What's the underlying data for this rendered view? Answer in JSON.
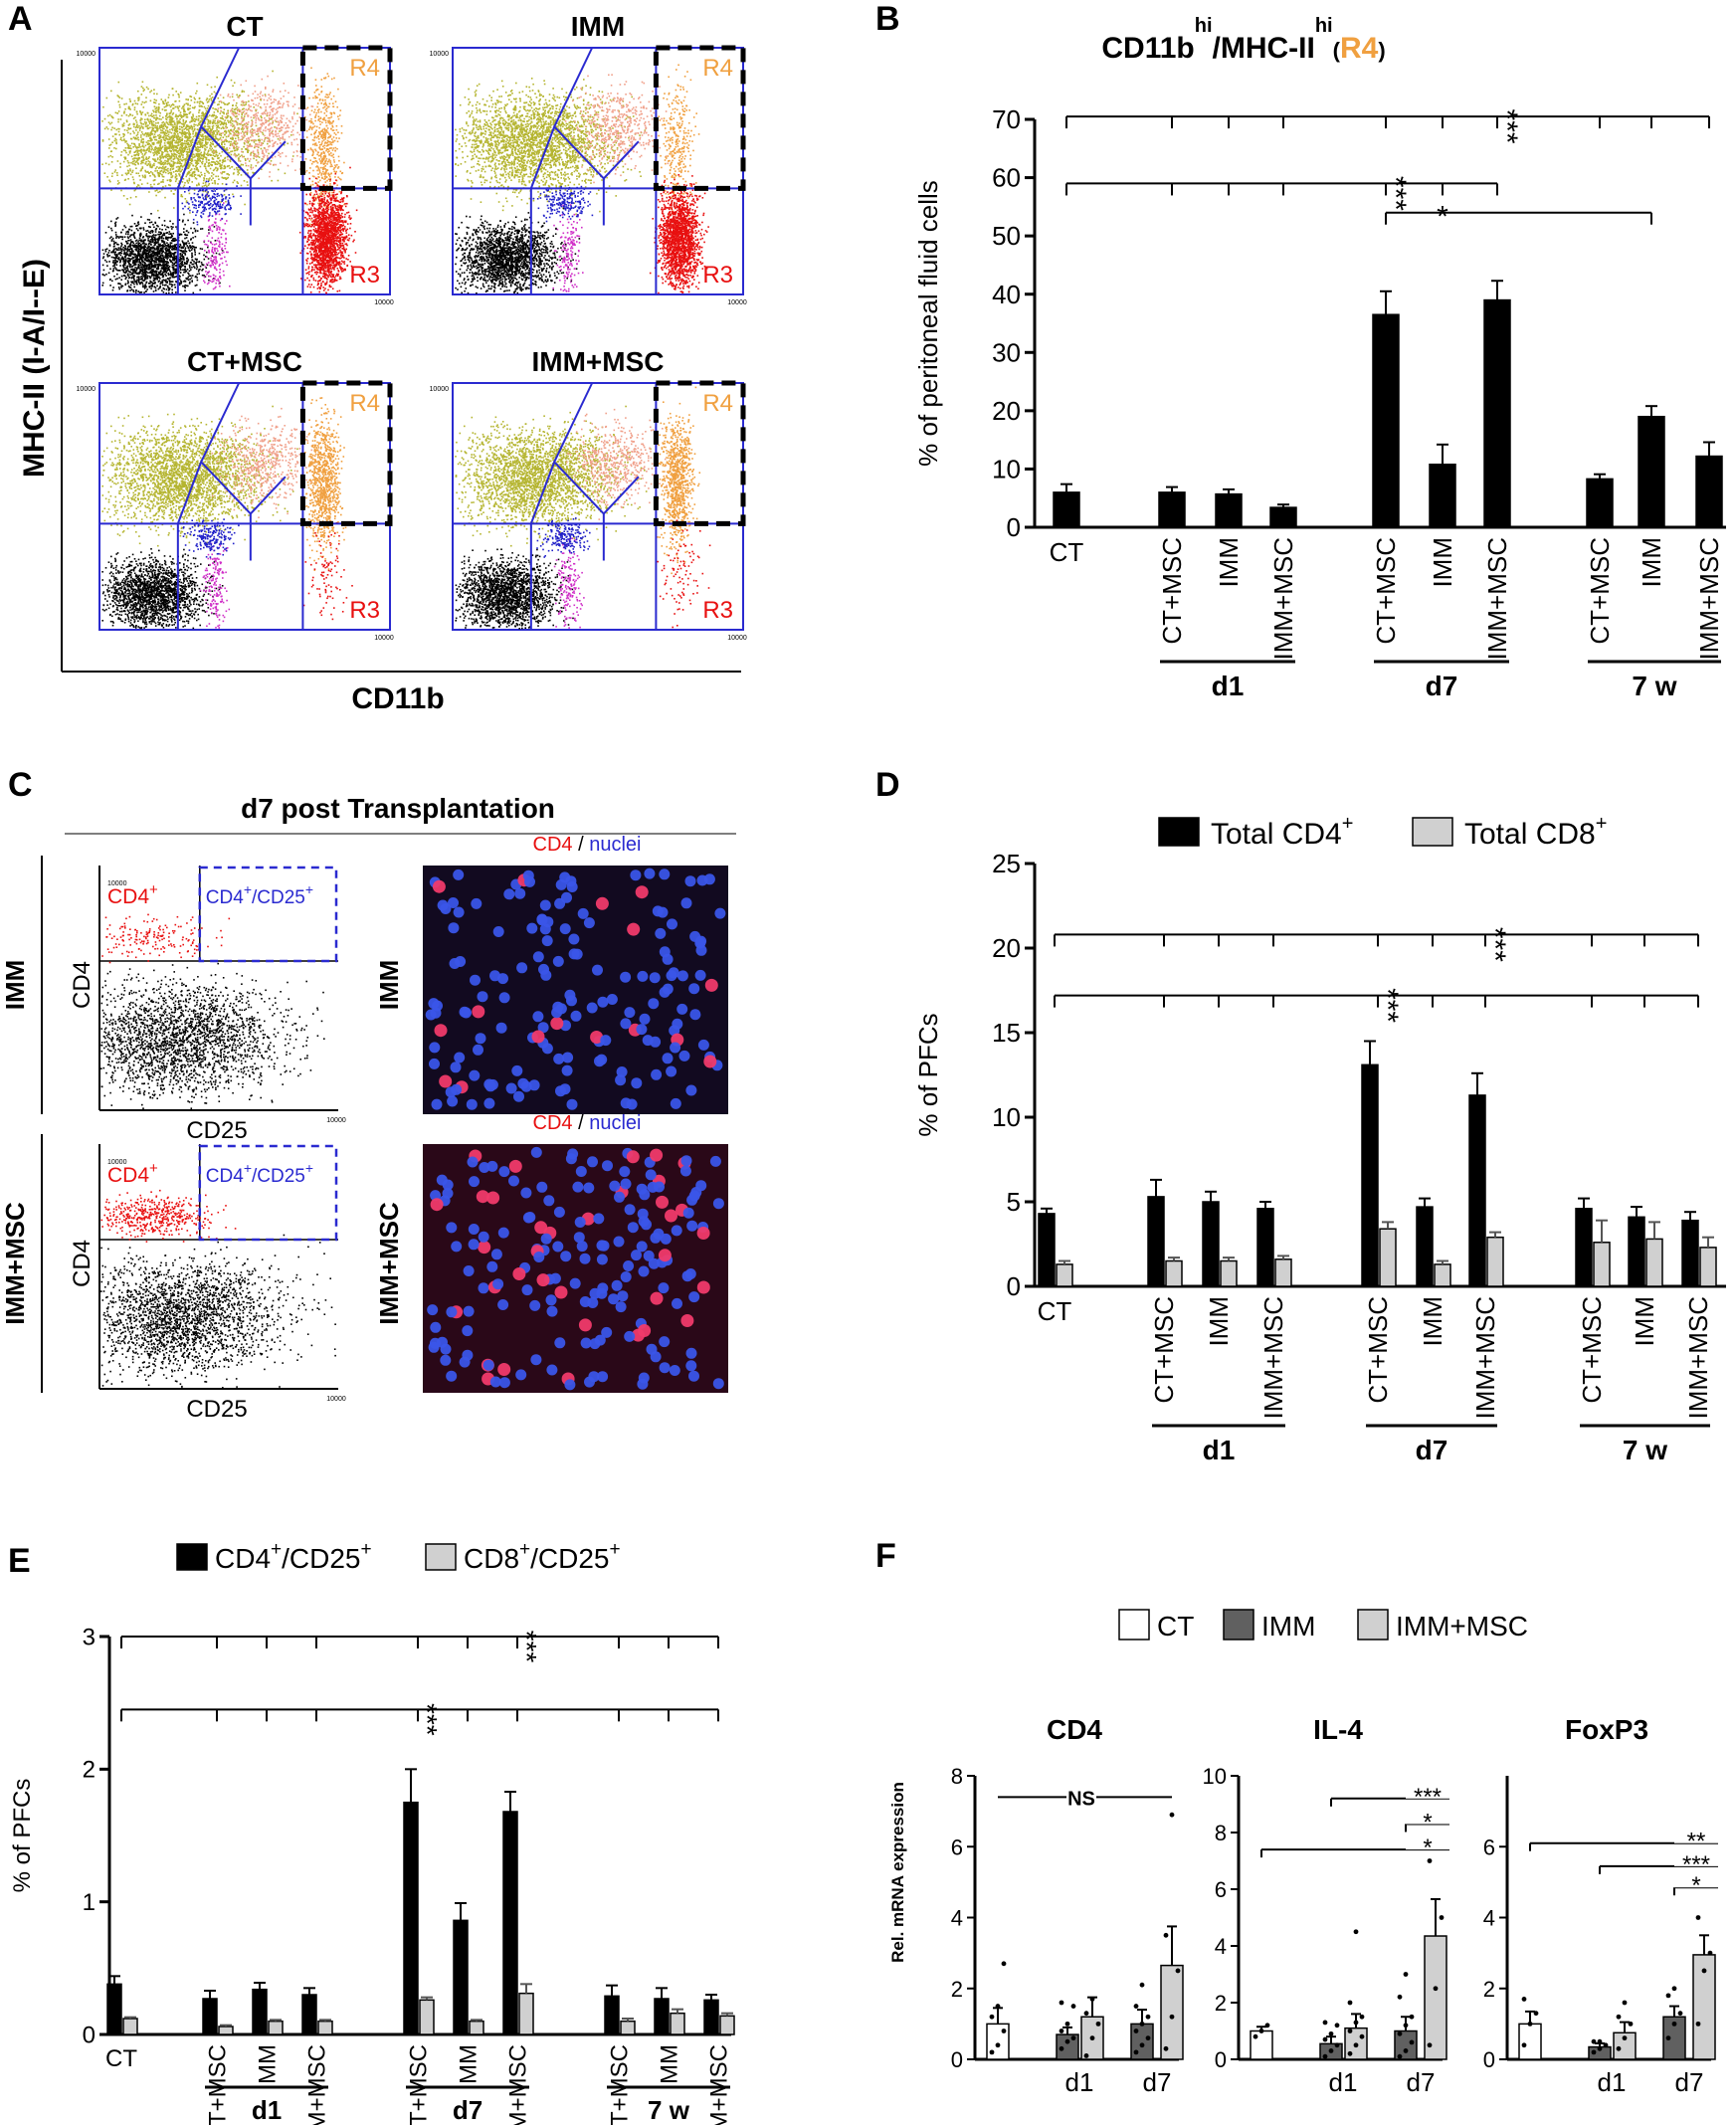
{
  "panel_letters": [
    "A",
    "B",
    "C",
    "D",
    "E",
    "F"
  ],
  "panelA": {
    "ylabel": "MHC-II (I-A/I--E)",
    "xlabel": "CD11b",
    "plots": [
      {
        "title": "CT",
        "r4": "R4",
        "r3": "R3",
        "r3_density": 1.0,
        "r4_density": 0.55
      },
      {
        "title": "IMM",
        "r4": "R4",
        "r3": "R3",
        "r3_density": 1.0,
        "r4_density": 0.35
      },
      {
        "title": "CT+MSC",
        "r4": "R4",
        "r3": "R3",
        "r3_density": 0.05,
        "r4_density": 1.0
      },
      {
        "title": "IMM+MSC",
        "r4": "R4",
        "r3": "R3",
        "r3_density": 0.05,
        "r4_density": 1.0
      }
    ],
    "tick_label": "10000",
    "colors": {
      "olive": "#b5b530",
      "salmon": "#f0a08a",
      "orange": "#f0a040",
      "red": "#e81010",
      "blue": "#2020c8",
      "magenta": "#d030c8",
      "black": "#000000",
      "gate": "#2a2ad0"
    }
  },
  "panelC": {
    "title": "d7 post Transplantation",
    "rows": [
      "IMM",
      "IMM+MSC"
    ],
    "ylabel": "CD4",
    "xlabel": "CD25",
    "gate_left": "CD4",
    "gate_right": "CD4",
    "gate_right_2": "/CD25",
    "sup": "+",
    "micro_label_red": "CD4",
    "micro_label_sep": " / ",
    "micro_label_blue": "nuclei",
    "tick_label": "10000"
  },
  "chart_data": [
    {
      "panel": "B",
      "type": "bar",
      "title_main": "CD11b",
      "title_sup": "hi",
      "title_mid": "/MHC-II",
      "title_sup2": "hi",
      "title_gate": "R4",
      "ylabel": "% of peritoneal fluid cells",
      "ylim": [
        0,
        70
      ],
      "yticks": [
        0,
        10,
        20,
        30,
        40,
        50,
        60,
        70
      ],
      "categories": [
        "CT",
        "CT+MSC",
        "IMM",
        "IMM+MSC",
        "CT+MSC",
        "IMM",
        "IMM+MSC",
        "CT+MSC",
        "IMM",
        "IMM+MSC"
      ],
      "groups": [
        {
          "label": "d1",
          "from": 1,
          "to": 3
        },
        {
          "label": "d7",
          "from": 4,
          "to": 6
        },
        {
          "label": "7 w",
          "from": 7,
          "to": 9
        }
      ],
      "series": [
        {
          "values": [
            6.0,
            6.0,
            5.7,
            3.4,
            36.5,
            10.8,
            39.0,
            8.3,
            19.0,
            12.2
          ],
          "errors": [
            1.4,
            0.9,
            0.8,
            0.5,
            4.0,
            3.4,
            3.3,
            0.8,
            1.8,
            2.4
          ],
          "color": "#000000"
        }
      ],
      "significance": [
        {
          "label": "***",
          "y": 70.5
        },
        {
          "label": "***",
          "y": 59.0
        },
        {
          "label": "*",
          "y": 54.0
        }
      ]
    },
    {
      "panel": "D",
      "type": "bar",
      "ylabel": "% of PFCs",
      "ylim": [
        0,
        25
      ],
      "yticks": [
        0,
        5,
        10,
        15,
        20,
        25
      ],
      "categories": [
        "CT",
        "CT+MSC",
        "IMM",
        "IMM+MSC",
        "CT+MSC",
        "IMM",
        "IMM+MSC",
        "CT+MSC",
        "IMM",
        "IMM+MSC"
      ],
      "groups": [
        {
          "label": "d1",
          "from": 1,
          "to": 3
        },
        {
          "label": "d7",
          "from": 4,
          "to": 6
        },
        {
          "label": "7 w",
          "from": 7,
          "to": 9
        }
      ],
      "series": [
        {
          "name": "Total CD4",
          "name_sup": "+",
          "values": [
            4.3,
            5.3,
            5.0,
            4.6,
            13.1,
            4.7,
            11.3,
            4.6,
            4.1,
            3.9
          ],
          "errors": [
            0.3,
            1.0,
            0.6,
            0.4,
            1.4,
            0.5,
            1.3,
            0.6,
            0.6,
            0.5
          ],
          "color": "#000000"
        },
        {
          "name": "Total CD8",
          "name_sup": "+",
          "values": [
            1.3,
            1.5,
            1.5,
            1.6,
            3.4,
            1.3,
            2.9,
            2.6,
            2.8,
            2.3
          ],
          "errors": [
            0.2,
            0.2,
            0.2,
            0.2,
            0.4,
            0.2,
            0.3,
            1.3,
            1.0,
            0.6
          ],
          "color": "#d0d0d0"
        }
      ],
      "significance": [
        {
          "label": "***",
          "y": 20.8
        },
        {
          "label": "***",
          "y": 17.2
        }
      ]
    },
    {
      "panel": "E",
      "type": "bar",
      "ylabel": "% of PFCs",
      "ylim": [
        0,
        3
      ],
      "yticks": [
        0,
        1,
        2,
        3
      ],
      "categories": [
        "CT",
        "CT+MSC",
        "IMM",
        "IMM+MSC",
        "CT+MSC",
        "IMM",
        "IMM+MSC",
        "CT+MSC",
        "IMM",
        "IMM+MSC"
      ],
      "groups": [
        {
          "label": "d1",
          "from": 1,
          "to": 3
        },
        {
          "label": "d7",
          "from": 4,
          "to": 6
        },
        {
          "label": "7 w",
          "from": 7,
          "to": 9
        }
      ],
      "series": [
        {
          "name": "CD4",
          "name_sup": "+",
          "name_mid": "/CD25",
          "name_sup2": "+",
          "values": [
            0.38,
            0.27,
            0.34,
            0.3,
            1.75,
            0.86,
            1.68,
            0.29,
            0.27,
            0.26
          ],
          "errors": [
            0.06,
            0.06,
            0.05,
            0.05,
            0.25,
            0.13,
            0.15,
            0.08,
            0.08,
            0.04
          ],
          "color": "#000000"
        },
        {
          "name": "CD8",
          "name_sup": "+",
          "name_mid": "/CD25",
          "name_sup2": "+",
          "values": [
            0.12,
            0.06,
            0.1,
            0.1,
            0.26,
            0.1,
            0.31,
            0.1,
            0.16,
            0.14
          ],
          "errors": [
            0.01,
            0.01,
            0.01,
            0.01,
            0.02,
            0.01,
            0.07,
            0.02,
            0.03,
            0.02
          ],
          "color": "#d0d0d0"
        }
      ],
      "significance": [
        {
          "label": "***",
          "y": 3.0
        },
        {
          "label": "***",
          "y": 2.45
        }
      ]
    },
    {
      "panel": "F",
      "type": "bar",
      "ylabel": "Rel. mRNA expression",
      "legend": [
        {
          "name": "CT",
          "color": "#ffffff"
        },
        {
          "name": "IMM",
          "color": "#606060"
        },
        {
          "name": "IMM+MSC",
          "color": "#d0d0d0"
        }
      ],
      "subplots": [
        {
          "title": "CD4",
          "ylim": [
            0,
            8
          ],
          "yticks": [
            0,
            2,
            4,
            6,
            8
          ],
          "groups": [
            "d1",
            "d7"
          ],
          "values": [
            1.0,
            0.7,
            1.2,
            1.0,
            2.65
          ],
          "errors": [
            0.45,
            0.2,
            0.55,
            0.4,
            1.1
          ],
          "colors": [
            "#ffffff",
            "#606060",
            "#d0d0d0",
            "#606060",
            "#d0d0d0"
          ],
          "dots": [
            [
              0.2,
              0.4,
              0.8,
              1.2,
              1.5,
              2.7
            ],
            [
              0.3,
              0.5,
              0.6,
              0.8,
              1.0,
              1.5,
              1.6
            ],
            [
              0.1,
              0.6,
              1.0,
              1.3,
              1.7
            ],
            [
              0.2,
              0.4,
              0.6,
              0.8,
              1.0,
              1.2,
              1.5,
              2.1
            ],
            [
              0.3,
              1.2,
              2.5,
              3.5,
              6.9
            ]
          ],
          "sig": [
            {
              "label": "NS",
              "y": 7.4
            }
          ]
        },
        {
          "title": "IL-4",
          "ylim": [
            0,
            10
          ],
          "yticks": [
            0,
            2,
            4,
            6,
            8,
            10
          ],
          "groups": [
            "d1",
            "d7"
          ],
          "values": [
            1.0,
            0.55,
            1.1,
            1.0,
            4.35
          ],
          "errors": [
            0.15,
            0.25,
            0.5,
            0.5,
            1.3
          ],
          "colors": [
            "#ffffff",
            "#606060",
            "#d0d0d0",
            "#606060",
            "#d0d0d0"
          ],
          "dots": [
            [
              0.8,
              1.0,
              1.2
            ],
            [
              0.1,
              0.3,
              0.5,
              0.7,
              0.9,
              1.2,
              1.3
            ],
            [
              0.2,
              0.5,
              0.8,
              1.0,
              1.3,
              1.5,
              2.0,
              4.5
            ],
            [
              0.1,
              0.3,
              0.6,
              0.9,
              1.2,
              1.5,
              2.2,
              3.0
            ],
            [
              0.5,
              2.5,
              5.0,
              7.0
            ]
          ],
          "sig": [
            {
              "label": "***",
              "y": 9.2
            },
            {
              "label": "*",
              "y": 8.3
            },
            {
              "label": "*",
              "y": 7.4
            }
          ]
        },
        {
          "title": "FoxP3",
          "ylim": [
            0,
            8
          ],
          "yticks": [
            0,
            2,
            4,
            6
          ],
          "groups": [
            "d1",
            "d7"
          ],
          "values": [
            1.0,
            0.35,
            0.75,
            1.2,
            2.95
          ],
          "errors": [
            0.35,
            0.1,
            0.3,
            0.3,
            0.55
          ],
          "colors": [
            "#ffffff",
            "#606060",
            "#d0d0d0",
            "#606060",
            "#d0d0d0"
          ],
          "dots": [
            [
              0.4,
              1.0,
              1.3,
              1.7
            ],
            [
              0.2,
              0.3,
              0.4,
              0.5,
              0.5
            ],
            [
              0.3,
              0.6,
              1.0,
              1.2,
              1.6
            ],
            [
              0.6,
              1.0,
              1.3,
              1.8,
              2.0
            ],
            [
              1.0,
              2.5,
              3.0,
              4.0
            ]
          ],
          "sig": [
            {
              "label": "**",
              "y": 6.1
            },
            {
              "label": "***",
              "y": 5.45
            },
            {
              "label": "*",
              "y": 4.85
            }
          ]
        }
      ]
    }
  ]
}
